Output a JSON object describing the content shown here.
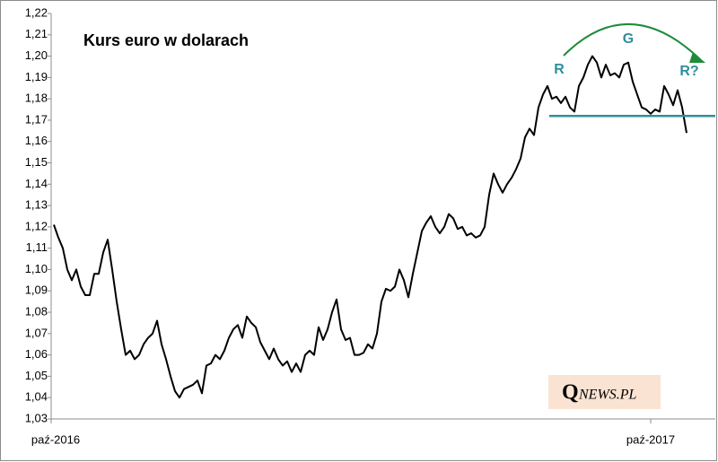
{
  "chart_data": {
    "type": "line",
    "title": "Kurs euro w dolarach",
    "categories": [
      "paź-2016",
      null,
      null,
      null,
      null,
      null,
      null,
      null,
      null,
      null,
      null,
      null,
      null,
      null,
      null,
      null,
      null,
      null,
      null,
      null,
      null,
      null,
      null,
      null,
      null,
      null,
      null,
      null,
      null,
      null,
      null,
      null,
      null,
      null,
      null,
      null,
      null,
      null,
      null,
      null,
      null,
      null,
      null,
      null,
      null,
      null,
      null,
      null,
      null,
      null,
      null,
      null,
      null,
      null,
      null,
      null,
      null,
      null,
      null,
      null,
      null,
      null,
      null,
      null,
      null,
      null,
      null,
      null,
      null,
      null,
      null,
      null,
      null,
      null,
      null,
      null,
      null,
      null,
      null,
      null,
      null,
      null,
      null,
      null,
      null,
      null,
      null,
      null,
      null,
      null,
      null,
      null,
      null,
      null,
      null,
      null,
      null,
      null,
      null,
      null,
      null,
      null,
      null,
      null,
      null,
      null,
      null,
      null,
      null,
      null,
      null,
      null,
      null,
      null,
      null,
      null,
      null,
      null,
      null,
      null,
      null,
      null,
      null,
      null,
      null,
      null,
      null,
      null,
      null,
      null,
      null,
      null,
      null,
      "paź-2017",
      null,
      null,
      null,
      null,
      null,
      null,
      null,
      null
    ],
    "series": [
      {
        "color": "#000000",
        "values": [
          1.121,
          1.115,
          1.11,
          1.1,
          1.095,
          1.1,
          1.092,
          1.088,
          1.088,
          1.098,
          1.098,
          1.108,
          1.114,
          1.1,
          1.085,
          1.072,
          1.06,
          1.062,
          1.058,
          1.06,
          1.065,
          1.068,
          1.07,
          1.076,
          1.065,
          1.058,
          1.05,
          1.043,
          1.04,
          1.044,
          1.045,
          1.046,
          1.048,
          1.042,
          1.055,
          1.056,
          1.06,
          1.058,
          1.062,
          1.068,
          1.072,
          1.074,
          1.068,
          1.078,
          1.075,
          1.073,
          1.066,
          1.062,
          1.058,
          1.063,
          1.058,
          1.055,
          1.057,
          1.052,
          1.056,
          1.052,
          1.06,
          1.062,
          1.06,
          1.073,
          1.067,
          1.072,
          1.08,
          1.086,
          1.072,
          1.067,
          1.068,
          1.06,
          1.06,
          1.061,
          1.065,
          1.063,
          1.07,
          1.085,
          1.091,
          1.09,
          1.092,
          1.1,
          1.095,
          1.087,
          1.098,
          1.108,
          1.118,
          1.122,
          1.125,
          1.12,
          1.117,
          1.12,
          1.126,
          1.124,
          1.119,
          1.12,
          1.116,
          1.117,
          1.115,
          1.116,
          1.12,
          1.135,
          1.145,
          1.14,
          1.136,
          1.14,
          1.143,
          1.147,
          1.152,
          1.162,
          1.166,
          1.163,
          1.176,
          1.182,
          1.186,
          1.18,
          1.181,
          1.178,
          1.181,
          1.176,
          1.174,
          1.186,
          1.19,
          1.196,
          1.2,
          1.197,
          1.19,
          1.196,
          1.191,
          1.192,
          1.19,
          1.196,
          1.197,
          1.188,
          1.182,
          1.176,
          1.175,
          1.173,
          1.175,
          1.174,
          1.186,
          1.182,
          1.177,
          1.184,
          1.176,
          1.164
        ]
      }
    ],
    "ylim": [
      1.03,
      1.22
    ],
    "yticks": [
      {
        "value": 1.03,
        "label": "1,03"
      },
      {
        "value": 1.04,
        "label": "1,04"
      },
      {
        "value": 1.05,
        "label": "1,05"
      },
      {
        "value": 1.06,
        "label": "1,06"
      },
      {
        "value": 1.07,
        "label": "1,07"
      },
      {
        "value": 1.08,
        "label": "1,08"
      },
      {
        "value": 1.09,
        "label": "1,09"
      },
      {
        "value": 1.1,
        "label": "1,10"
      },
      {
        "value": 1.11,
        "label": "1,11"
      },
      {
        "value": 1.12,
        "label": "1,12"
      },
      {
        "value": 1.13,
        "label": "1,13"
      },
      {
        "value": 1.14,
        "label": "1,14"
      },
      {
        "value": 1.15,
        "label": "1,15"
      },
      {
        "value": 1.16,
        "label": "1,16"
      },
      {
        "value": 1.17,
        "label": "1,17"
      },
      {
        "value": 1.18,
        "label": "1,18"
      },
      {
        "value": 1.19,
        "label": "1,19"
      },
      {
        "value": 1.2,
        "label": "1,20"
      },
      {
        "value": 1.21,
        "label": "1,21"
      },
      {
        "value": 1.22,
        "label": "1,22"
      }
    ],
    "support_level": 1.172,
    "annotations": [
      "R",
      "G",
      "R?"
    ],
    "logo": {
      "initial": "Q",
      "rest": "NEWS.PL"
    }
  }
}
